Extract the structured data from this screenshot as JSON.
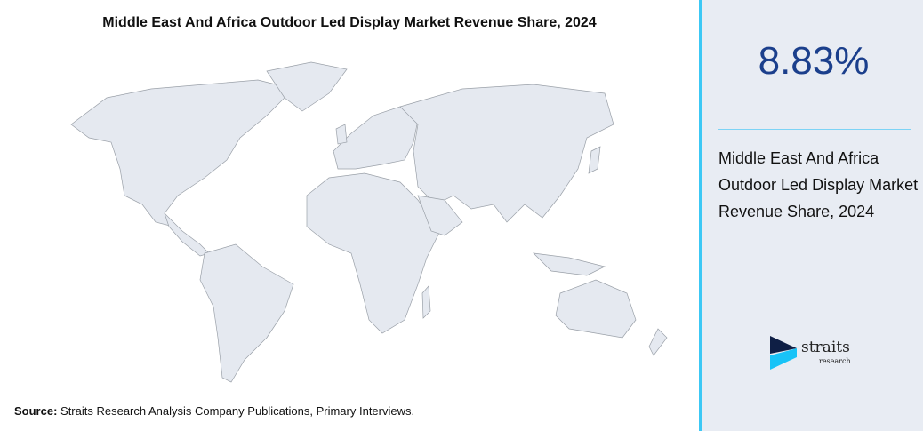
{
  "title": "Middle East And Africa Outdoor Led Display Market Revenue Share, 2024",
  "source": {
    "label": "Source:",
    "text": " Straits Research Analysis Company Publications, Primary Interviews."
  },
  "panel": {
    "value": "8.83%",
    "description": "Middle East And Africa Outdoor Led Display Market Revenue Share, 2024",
    "value_color": "#1b3f8c",
    "accent_color": "#3cc8f5"
  },
  "logo": {
    "word": "straits",
    "sub": "research"
  }
}
